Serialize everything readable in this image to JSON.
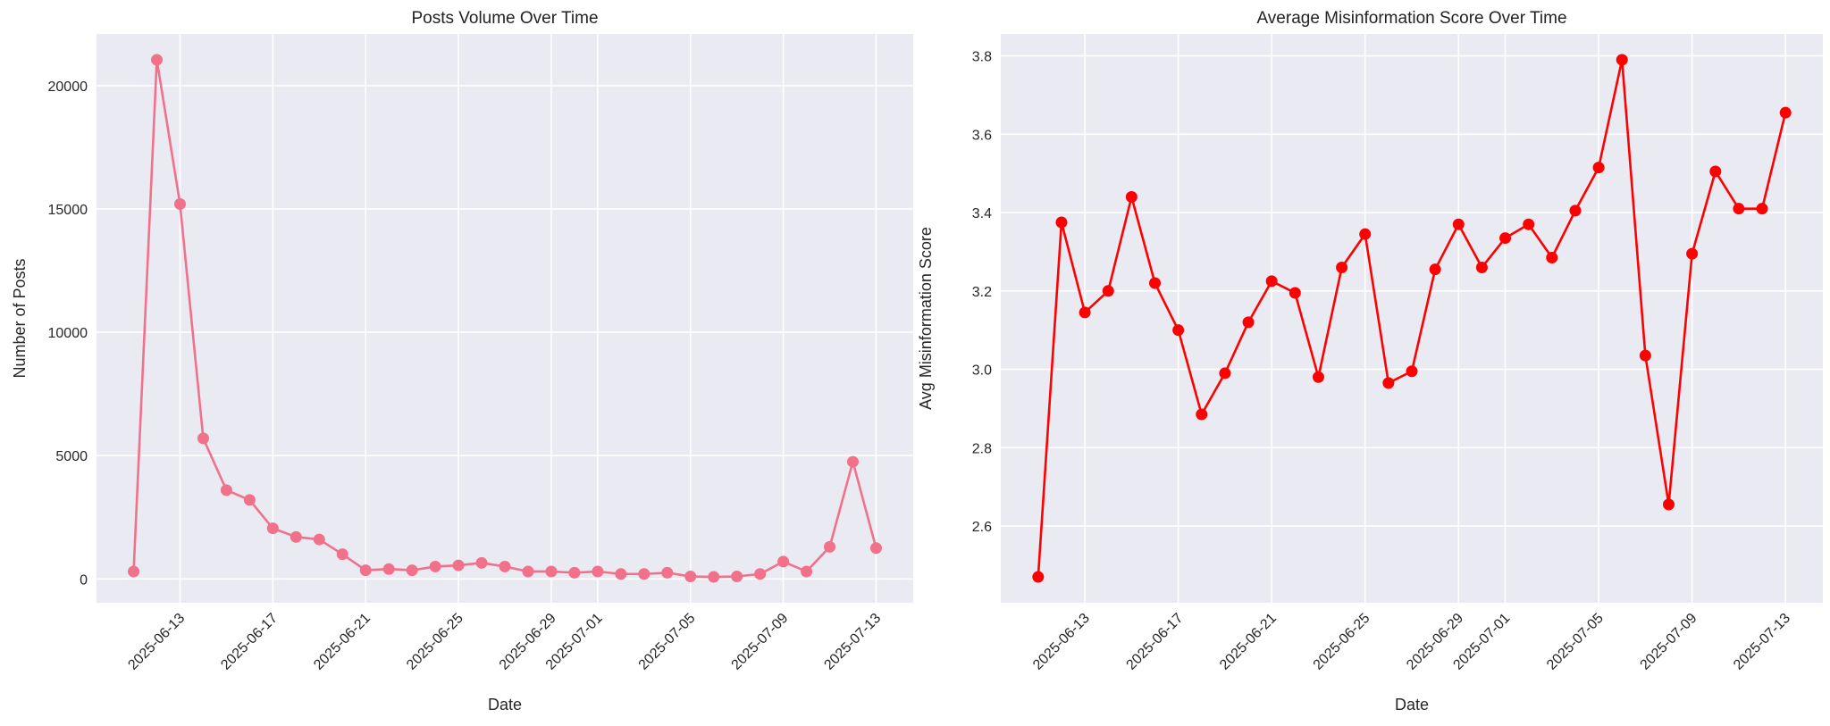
{
  "chart_data": [
    {
      "type": "line",
      "title": "Posts Volume Over Time",
      "xlabel": "Date",
      "ylabel": "Number of Posts",
      "grid": true,
      "color": "#f2718a",
      "marker": "circle",
      "x": [
        "2025-06-11",
        "2025-06-12",
        "2025-06-13",
        "2025-06-14",
        "2025-06-15",
        "2025-06-16",
        "2025-06-17",
        "2025-06-18",
        "2025-06-19",
        "2025-06-20",
        "2025-06-21",
        "2025-06-22",
        "2025-06-23",
        "2025-06-24",
        "2025-06-25",
        "2025-06-26",
        "2025-06-27",
        "2025-06-28",
        "2025-06-29",
        "2025-06-30",
        "2025-07-01",
        "2025-07-02",
        "2025-07-03",
        "2025-07-04",
        "2025-07-05",
        "2025-07-06",
        "2025-07-07",
        "2025-07-08",
        "2025-07-09",
        "2025-07-10",
        "2025-07-11",
        "2025-07-12",
        "2025-07-13"
      ],
      "values": [
        300,
        21050,
        15200,
        5700,
        3600,
        3200,
        2050,
        1700,
        1600,
        1000,
        350,
        400,
        350,
        500,
        550,
        650,
        500,
        300,
        300,
        250,
        300,
        200,
        200,
        250,
        100,
        80,
        100,
        200,
        700,
        300,
        1300,
        4750,
        1250
      ],
      "xticks": [
        "2025-06-13",
        "2025-06-17",
        "2025-06-21",
        "2025-06-25",
        "2025-06-29",
        "2025-07-01",
        "2025-07-05",
        "2025-07-09",
        "2025-07-13"
      ],
      "yticks": [
        0,
        5000,
        10000,
        15000,
        20000
      ],
      "ylim": [
        -968,
        22098
      ]
    },
    {
      "type": "line",
      "title": "Average Misinformation Score Over Time",
      "xlabel": "Date",
      "ylabel": "Avg Misinformation Score",
      "grid": true,
      "color": "#ff0000",
      "marker": "circle",
      "x": [
        "2025-06-11",
        "2025-06-12",
        "2025-06-13",
        "2025-06-14",
        "2025-06-15",
        "2025-06-16",
        "2025-06-17",
        "2025-06-18",
        "2025-06-19",
        "2025-06-20",
        "2025-06-21",
        "2025-06-22",
        "2025-06-23",
        "2025-06-24",
        "2025-06-25",
        "2025-06-26",
        "2025-06-27",
        "2025-06-28",
        "2025-06-29",
        "2025-06-30",
        "2025-07-01",
        "2025-07-02",
        "2025-07-03",
        "2025-07-04",
        "2025-07-05",
        "2025-07-06",
        "2025-07-07",
        "2025-07-08",
        "2025-07-09",
        "2025-07-10",
        "2025-07-11",
        "2025-07-12",
        "2025-07-13"
      ],
      "values": [
        2.47,
        3.375,
        3.145,
        3.2,
        3.44,
        3.22,
        3.1,
        2.885,
        2.99,
        3.12,
        3.225,
        3.195,
        2.98,
        3.26,
        3.345,
        2.965,
        2.995,
        3.255,
        3.37,
        3.26,
        3.335,
        3.37,
        3.285,
        3.405,
        3.515,
        3.79,
        3.035,
        2.655,
        3.295,
        3.505,
        3.41,
        3.41,
        3.655
      ],
      "xticks": [
        "2025-06-13",
        "2025-06-17",
        "2025-06-21",
        "2025-06-25",
        "2025-06-29",
        "2025-07-01",
        "2025-07-05",
        "2025-07-09",
        "2025-07-13"
      ],
      "yticks": [
        "2.6",
        "2.8",
        "3.0",
        "3.2",
        "3.4",
        "3.6",
        "3.8"
      ],
      "ylim": [
        2.404,
        3.856
      ]
    }
  ]
}
